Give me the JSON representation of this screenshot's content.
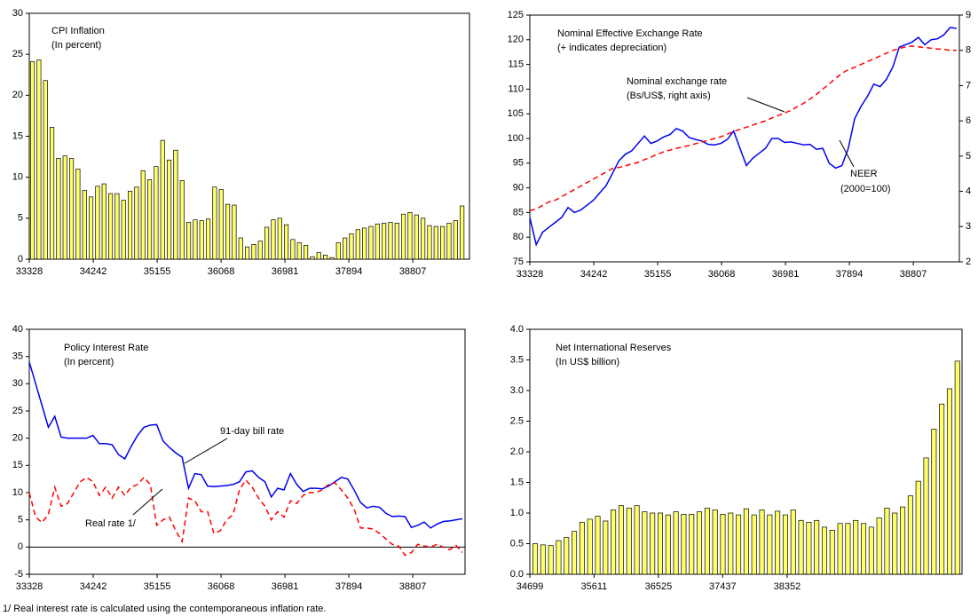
{
  "chart_data": [
    {
      "type": "bar",
      "title": "CPI Inflation",
      "subtitle": "(In percent)",
      "color": "#ffff66",
      "x": [
        33373,
        33466,
        33559,
        33652,
        33745,
        33838,
        33931,
        34024,
        34117,
        34210,
        34303,
        34396,
        34489,
        34582,
        34675,
        34768,
        34861,
        34954,
        35047,
        35140,
        35233,
        35326,
        35419,
        35512,
        35605,
        35698,
        35791,
        35884,
        35977,
        36070,
        36163,
        36256,
        36349,
        36442,
        36535,
        36628,
        36721,
        36814,
        36907,
        37000,
        37093,
        37186,
        37279,
        37372,
        37465,
        37558,
        37651,
        37744,
        37837,
        37930,
        38023,
        38116,
        38209,
        38302,
        38395,
        38488,
        38581,
        38674,
        38767,
        38860,
        38953,
        39046,
        39139,
        39232,
        39325,
        39418,
        39511
      ],
      "values": [
        24.1,
        24.3,
        21.8,
        16.1,
        12.3,
        12.6,
        12.3,
        11.0,
        8.4,
        7.6,
        8.9,
        9.2,
        8.0,
        8.0,
        7.2,
        8.3,
        8.8,
        10.8,
        9.7,
        11.3,
        14.5,
        12.1,
        13.3,
        9.6,
        4.5,
        4.8,
        4.7,
        4.9,
        8.8,
        8.5,
        6.7,
        6.6,
        2.6,
        1.5,
        1.8,
        2.2,
        3.9,
        4.8,
        5.0,
        4.2,
        2.4,
        2.0,
        1.7,
        0.3,
        0.8,
        0.5,
        0.2,
        2.0,
        2.6,
        3.1,
        3.6,
        3.8,
        4.0,
        4.3,
        4.4,
        4.5,
        4.4,
        5.5,
        5.7,
        5.4,
        5.0,
        4.1,
        4.0,
        4.0,
        4.4,
        4.7,
        6.5
      ],
      "xlim": [
        33328,
        39617
      ],
      "xticks": [
        33328,
        34242,
        35155,
        36068,
        36981,
        37894,
        38807
      ],
      "ylim": [
        0,
        30
      ],
      "yticks": [
        0,
        5,
        10,
        15,
        20,
        25,
        30
      ]
    },
    {
      "type": "line",
      "title": "Nominal Effective Exchange Rate",
      "subtitle": "(+ indicates depreciation)",
      "x": [
        33328,
        33419,
        33510,
        33601,
        33692,
        33783,
        33874,
        33965,
        34056,
        34147,
        34238,
        34329,
        34420,
        34511,
        34602,
        34693,
        34784,
        34875,
        34966,
        35057,
        35148,
        35239,
        35330,
        35421,
        35512,
        35603,
        35694,
        35785,
        35876,
        35967,
        36058,
        36149,
        36240,
        36331,
        36422,
        36513,
        36604,
        36695,
        36786,
        36877,
        36968,
        37059,
        37150,
        37241,
        37332,
        37423,
        37514,
        37605,
        37696,
        37787,
        37878,
        37969,
        38060,
        38151,
        38242,
        38333,
        38424,
        38515,
        38606,
        38697,
        38788,
        38879,
        38970,
        39061,
        39152,
        39243,
        39334,
        39425
      ],
      "series": [
        {
          "name": "NEER",
          "note": "(2000=100)",
          "color": "#0000ee",
          "dash": false,
          "values": [
            84,
            78.5,
            81,
            82,
            83,
            84,
            86,
            85,
            85.5,
            86.5,
            87.5,
            89,
            90.5,
            93,
            95.5,
            96.8,
            97.5,
            99,
            100.5,
            99,
            99.5,
            100.3,
            100.8,
            102,
            101.5,
            100.2,
            99.8,
            99.5,
            98.8,
            98.7,
            99,
            99.8,
            101.5,
            98,
            94.5,
            96,
            97,
            98,
            100,
            100,
            99.2,
            99.3,
            99,
            98.7,
            98.8,
            97.8,
            98,
            95,
            94,
            94.5,
            98,
            104,
            106.5,
            108.5,
            111,
            110.5,
            112,
            114.5,
            118.5,
            119,
            119.5,
            120.5,
            119,
            120,
            120.2,
            121,
            122.5,
            122.3
          ]
        },
        {
          "name": "Nominal exchange rate",
          "note": "(Bs/US$, right axis)",
          "color": "#ff0000",
          "dash": true,
          "axis": "y2",
          "values": [
            3.45,
            3.5,
            3.6,
            3.7,
            3.75,
            3.85,
            3.95,
            4.05,
            4.15,
            4.25,
            4.35,
            4.45,
            4.55,
            4.65,
            4.68,
            4.72,
            4.78,
            4.82,
            4.9,
            4.97,
            5.05,
            5.12,
            5.17,
            5.22,
            5.26,
            5.3,
            5.35,
            5.4,
            5.45,
            5.5,
            5.55,
            5.62,
            5.7,
            5.76,
            5.82,
            5.88,
            5.94,
            6.0,
            6.08,
            6.15,
            6.22,
            6.3,
            6.4,
            6.5,
            6.62,
            6.75,
            6.9,
            7.05,
            7.2,
            7.35,
            7.45,
            7.52,
            7.6,
            7.68,
            7.76,
            7.84,
            7.92,
            8.0,
            8.05,
            8.1,
            8.12,
            8.1,
            8.08,
            8.06,
            8.04,
            8.03,
            8.0,
            8.0
          ]
        }
      ],
      "xlim": [
        33328,
        39465
      ],
      "xticks": [
        33328,
        34242,
        35155,
        36068,
        36981,
        37894,
        38807
      ],
      "ylim": [
        75,
        125
      ],
      "yticks": [
        75,
        80,
        85,
        90,
        95,
        100,
        105,
        110,
        115,
        120,
        125
      ],
      "y2lim": [
        2,
        9
      ],
      "y2ticks": [
        2,
        3,
        4,
        5,
        6,
        7,
        8,
        9
      ]
    },
    {
      "type": "line",
      "title": "Policy Interest Rate",
      "subtitle": "(In percent)",
      "zero_line": true,
      "x": [
        33328,
        33419,
        33510,
        33601,
        33692,
        33783,
        33874,
        33965,
        34056,
        34147,
        34238,
        34329,
        34420,
        34511,
        34602,
        34693,
        34784,
        34875,
        34966,
        35057,
        35148,
        35239,
        35330,
        35421,
        35512,
        35603,
        35694,
        35785,
        35876,
        35967,
        36058,
        36149,
        36240,
        36331,
        36422,
        36513,
        36604,
        36695,
        36786,
        36877,
        36968,
        37059,
        37150,
        37241,
        37332,
        37423,
        37514,
        37605,
        37696,
        37787,
        37878,
        37969,
        38060,
        38151,
        38242,
        38333,
        38424,
        38515,
        38606,
        38697,
        38788,
        38879,
        38970,
        39061,
        39152,
        39243,
        39334,
        39425,
        39516
      ],
      "series": [
        {
          "name": "91-day bill rate",
          "color": "#0000ee",
          "dash": false,
          "values": [
            34,
            30,
            26,
            22,
            24,
            20.2,
            20,
            20,
            20,
            20,
            20.5,
            19,
            19,
            18.8,
            17,
            16.2,
            18.5,
            20.5,
            22,
            22.4,
            22.5,
            19.5,
            18.3,
            17.3,
            16.5,
            10.8,
            13.5,
            13.3,
            11.2,
            11.1,
            11.2,
            11.3,
            11.5,
            12.0,
            13.8,
            14.0,
            12.8,
            12.0,
            9.2,
            10.8,
            10.5,
            13.5,
            11.5,
            10.2,
            10.8,
            10.8,
            10.7,
            11.2,
            12.0,
            12.8,
            12.5,
            10.5,
            8.2,
            7.2,
            7.5,
            7.3,
            6.2,
            5.6,
            5.7,
            5.6,
            3.6,
            4.0,
            4.6,
            3.5,
            4.2,
            4.7,
            4.8,
            5.0,
            5.2
          ]
        },
        {
          "name": "Real rate 1/",
          "color": "#ff0000",
          "dash": true,
          "values": [
            10,
            5.5,
            4.5,
            6,
            11,
            7.5,
            8,
            10,
            12,
            12.8,
            12,
            9.5,
            11,
            9,
            11,
            9.5,
            11,
            11.5,
            12.8,
            11.5,
            4,
            5,
            5.5,
            3,
            1,
            9,
            8.5,
            6.5,
            6.5,
            2.5,
            3,
            5,
            6,
            10.5,
            12.3,
            11,
            9,
            7.5,
            5,
            6.5,
            5.5,
            8.5,
            8,
            9.5,
            10,
            10,
            10.5,
            11.5,
            11.8,
            10.5,
            9,
            7,
            3.5,
            3.5,
            3.3,
            2.5,
            1.5,
            0.5,
            0.2,
            -1.5,
            -1,
            0.5,
            0.2,
            0,
            0.5,
            0,
            -0.5,
            0.3,
            -1
          ]
        }
      ],
      "xlim": [
        33328,
        39554
      ],
      "xticks": [
        33328,
        34242,
        35155,
        36068,
        36981,
        37894,
        38807
      ],
      "ylim": [
        -5,
        40
      ],
      "yticks": [
        -5,
        0,
        5,
        10,
        15,
        20,
        25,
        30,
        35,
        40
      ]
    },
    {
      "type": "bar",
      "title": "Net International Reserves",
      "subtitle": "(In US$ billion)",
      "color": "#ffff66",
      "x": [
        34775,
        34886,
        34997,
        35108,
        35219,
        35330,
        35441,
        35552,
        35663,
        35774,
        35885,
        35996,
        36107,
        36218,
        36329,
        36440,
        36551,
        36662,
        36773,
        36884,
        36995,
        37106,
        37217,
        37328,
        37439,
        37550,
        37661,
        37772,
        37883,
        37994,
        38105,
        38216,
        38327,
        38438,
        38549,
        38660,
        38771,
        38882,
        38993,
        39104,
        39215,
        39326,
        39437,
        39548,
        39659,
        39770,
        39881,
        39992,
        40103,
        40214,
        40325,
        40436,
        40547,
        40658,
        40769
      ],
      "values": [
        0.5,
        0.48,
        0.47,
        0.55,
        0.6,
        0.7,
        0.85,
        0.9,
        0.95,
        0.87,
        1.05,
        1.12,
        1.08,
        1.12,
        1.02,
        1.0,
        1.0,
        0.97,
        1.02,
        0.98,
        0.98,
        1.02,
        1.08,
        1.05,
        0.98,
        1.0,
        0.97,
        1.07,
        0.97,
        1.05,
        0.97,
        1.03,
        0.97,
        1.05,
        0.88,
        0.85,
        0.88,
        0.77,
        0.72,
        0.83,
        0.83,
        0.88,
        0.83,
        0.77,
        0.92,
        1.08,
        1.0,
        1.1,
        1.28,
        1.52,
        1.9,
        2.37,
        2.78,
        3.03,
        3.48
      ],
      "xlim": [
        34699,
        40835
      ],
      "xticks": [
        34699,
        35611,
        36525,
        37437,
        38352
      ],
      "ylim": [
        0,
        4
      ],
      "yticks": [
        {
          "value": 0,
          "label": "0.0"
        },
        {
          "value": 0.5,
          "label": "0.5"
        },
        {
          "value": 1,
          "label": "1.0"
        },
        {
          "value": 1.5,
          "label": "1.5"
        },
        {
          "value": 2,
          "label": "2.0"
        },
        {
          "value": 2.5,
          "label": "2.5"
        },
        {
          "value": 3,
          "label": "3.0"
        },
        {
          "value": 3.5,
          "label": "3.5"
        },
        {
          "value": 4,
          "label": "4.0"
        }
      ]
    }
  ],
  "footnote": "1/ Real interest rate is calculated using the contemporaneous inflation rate."
}
